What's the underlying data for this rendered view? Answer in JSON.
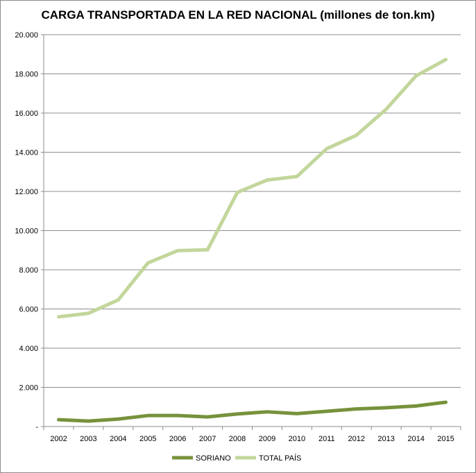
{
  "chart_data": {
    "type": "line",
    "title": "CARGA TRANSPORTADA EN LA RED NACIONAL (millones de ton.km)",
    "xlabel": "",
    "ylabel": "",
    "categories": [
      "2002",
      "2003",
      "2004",
      "2005",
      "2006",
      "2007",
      "2008",
      "2009",
      "2010",
      "2011",
      "2012",
      "2013",
      "2014",
      "2015"
    ],
    "ylim": [
      0,
      20000
    ],
    "yticks": [
      0,
      2000,
      4000,
      6000,
      8000,
      10000,
      12000,
      14000,
      16000,
      18000,
      20000
    ],
    "ytick_labels": [
      "-",
      "2.000",
      "4.000",
      "6.000",
      "8.000",
      "10.000",
      "12.000",
      "14.000",
      "16.000",
      "18.000",
      "20.000"
    ],
    "grid": true,
    "legend_position": "bottom",
    "series": [
      {
        "name": "SORIANO",
        "color": "#76923c",
        "values": [
          350,
          280,
          380,
          560,
          560,
          490,
          640,
          750,
          660,
          780,
          900,
          960,
          1050,
          1240
        ]
      },
      {
        "name": "TOTAL PAÍS",
        "color": "#c3d69b",
        "values": [
          5600,
          5780,
          6460,
          8350,
          8980,
          9020,
          11950,
          12580,
          12760,
          14180,
          14870,
          16200,
          17900,
          18730
        ]
      }
    ]
  }
}
